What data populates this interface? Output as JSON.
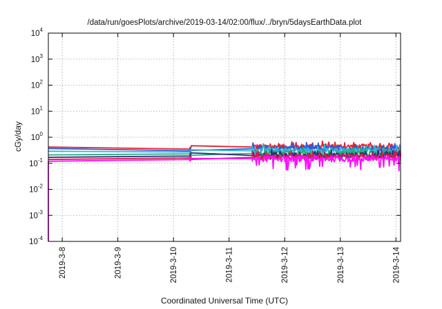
{
  "chart_data": {
    "type": "line",
    "title": "/data/run/goesPlots/archive/2019-03-14/02:00/flux/../bryn/5daysEarthData.plot",
    "xlabel": "Coordinated Universal Time (UTC)",
    "ylabel": "cGy/day",
    "yscale": "log",
    "ylim": [
      0.0001,
      10000
    ],
    "xlim": [
      "2019-03-07T18:00",
      "2019-03-14T02:00"
    ],
    "grid": true,
    "y_ticks": [
      {
        "value": 0.0001,
        "base": "10",
        "exp": "-4"
      },
      {
        "value": 0.001,
        "base": "10",
        "exp": "-3"
      },
      {
        "value": 0.01,
        "base": "10",
        "exp": "-2"
      },
      {
        "value": 0.1,
        "base": "10",
        "exp": "-1"
      },
      {
        "value": 1,
        "base": "10",
        "exp": "0"
      },
      {
        "value": 10,
        "base": "10",
        "exp": "1"
      },
      {
        "value": 100,
        "base": "10",
        "exp": "2"
      },
      {
        "value": 1000,
        "base": "10",
        "exp": "3"
      },
      {
        "value": 10000,
        "base": "10",
        "exp": "4"
      }
    ],
    "x_ticks": [
      {
        "value": "2019-03-08T00:00",
        "label": "2019-3-8"
      },
      {
        "value": "2019-03-09T00:00",
        "label": "2019-3-9"
      },
      {
        "value": "2019-03-10T00:00",
        "label": "2019-3-10"
      },
      {
        "value": "2019-03-11T00:00",
        "label": "2019-3-11"
      },
      {
        "value": "2019-03-12T00:00",
        "label": "2019-3-12"
      },
      {
        "value": "2019-03-13T00:00",
        "label": "2019-3-13"
      },
      {
        "value": "2019-03-14T00:00",
        "label": "2019-3-14"
      }
    ],
    "series": [
      {
        "color": "#e8202a",
        "x": [
          "2019-03-07T18:00",
          "2019-03-10T07:00",
          "2019-03-11T10:00",
          "2019-03-14T02:00"
        ],
        "values": [
          0.42,
          0.35,
          0.42,
          0.45
        ],
        "noisy_after": "2019-03-11T10:00"
      },
      {
        "color": "#2e5bd6",
        "x": [
          "2019-03-07T18:00",
          "2019-03-10T07:00",
          "2019-03-11T10:00",
          "2019-03-14T02:00"
        ],
        "values": [
          0.37,
          0.3,
          0.36,
          0.36
        ],
        "noisy_after": "2019-03-11T10:00"
      },
      {
        "color": "#2ab7d8",
        "x": [
          "2019-03-07T18:00",
          "2019-03-10T07:00",
          "2019-03-11T10:00",
          "2019-03-14T02:00"
        ],
        "values": [
          0.29,
          0.27,
          0.3,
          0.3
        ],
        "noisy_after": "2019-03-11T10:00"
      },
      {
        "color": "#28a878",
        "x": [
          "2019-03-07T18:00",
          "2019-03-10T07:00",
          "2019-03-11T10:00",
          "2019-03-14T02:00"
        ],
        "values": [
          0.21,
          0.23,
          0.24,
          0.24
        ],
        "noisy_after": "2019-03-11T10:00"
      },
      {
        "color": "#2a2e78",
        "x": [
          "2019-03-07T18:00",
          "2019-03-10T07:00",
          "2019-03-11T10:00",
          "2019-03-14T02:00"
        ],
        "values": [
          0.17,
          0.19,
          0.2,
          0.2
        ],
        "noisy_after": "2019-03-11T10:00"
      },
      {
        "color": "#d02050",
        "x": [
          "2019-03-07T18:00",
          "2019-03-10T07:00",
          "2019-03-11T10:00",
          "2019-03-14T02:00"
        ],
        "values": [
          0.14,
          0.16,
          0.17,
          0.17
        ],
        "noisy_after": "2019-03-11T10:00"
      },
      {
        "color": "#ff10ff",
        "x": [
          "2019-03-07T18:00",
          "2019-03-10T07:00",
          "2019-03-11T10:00",
          "2019-03-14T02:00"
        ],
        "values": [
          0.12,
          0.14,
          0.15,
          0.15
        ],
        "noisy_after": "2019-03-11T10:00",
        "dip_at_start": 0.0001
      }
    ]
  }
}
